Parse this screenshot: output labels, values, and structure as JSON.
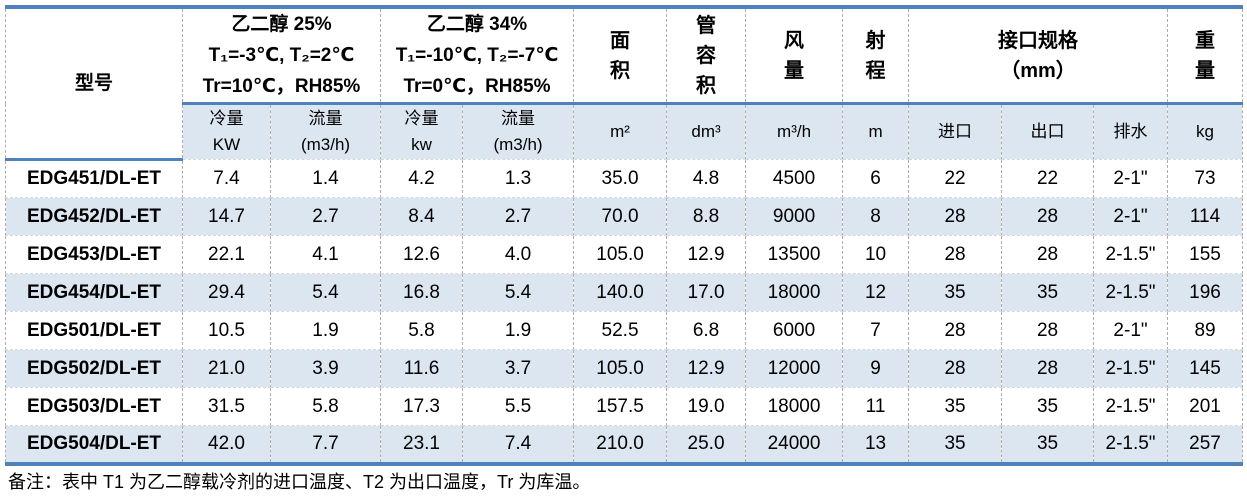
{
  "colors": {
    "accent_blue": "#4f81bd",
    "band_fill": "#dce6f1",
    "grid_line": "#aeaeae",
    "text": "#000000"
  },
  "header": {
    "model": "型号",
    "glycol25": "乙二醇 25%\nT₁=-3℃, T₂=2℃\nTr=10℃，RH85%",
    "glycol34": "乙二醇 34%\nT₁=-10℃, T₂=-7℃\nTr=0℃，RH85%",
    "area": "面\n积",
    "tube_volume": "管\n容\n积",
    "air_flow": "风\n量",
    "throw_range": "射\n程",
    "connection": "接口规格\n（mm）",
    "weight": "重\n量"
  },
  "units": [
    "冷量\nKW",
    "流量\n(m3/h)",
    "冷量\nkw",
    "流量\n(m3/h)",
    "m²",
    "dm³",
    "m³/h",
    "m",
    "进口",
    "出口",
    "排水",
    "kg"
  ],
  "rows": [
    [
      "EDG451/DL-ET",
      "7.4",
      "1.4",
      "4.2",
      "1.3",
      "35.0",
      "4.8",
      "4500",
      "6",
      "22",
      "22",
      "2-1\"",
      "73"
    ],
    [
      "EDG452/DL-ET",
      "14.7",
      "2.7",
      "8.4",
      "2.7",
      "70.0",
      "8.8",
      "9000",
      "8",
      "28",
      "28",
      "2-1\"",
      "114"
    ],
    [
      "EDG453/DL-ET",
      "22.1",
      "4.1",
      "12.6",
      "4.0",
      "105.0",
      "12.9",
      "13500",
      "10",
      "28",
      "28",
      "2-1.5\"",
      "155"
    ],
    [
      "EDG454/DL-ET",
      "29.4",
      "5.4",
      "16.8",
      "5.4",
      "140.0",
      "17.0",
      "18000",
      "12",
      "35",
      "35",
      "2-1.5\"",
      "196"
    ],
    [
      "EDG501/DL-ET",
      "10.5",
      "1.9",
      "5.8",
      "1.9",
      "52.5",
      "6.8",
      "6000",
      "7",
      "28",
      "28",
      "2-1\"",
      "89"
    ],
    [
      "EDG502/DL-ET",
      "21.0",
      "3.9",
      "11.6",
      "3.7",
      "105.0",
      "12.9",
      "12000",
      "9",
      "28",
      "28",
      "2-1.5\"",
      "145"
    ],
    [
      "EDG503/DL-ET",
      "31.5",
      "5.8",
      "17.3",
      "5.5",
      "157.5",
      "19.0",
      "18000",
      "11",
      "35",
      "35",
      "2-1.5\"",
      "201"
    ],
    [
      "EDG504/DL-ET",
      "42.0",
      "7.7",
      "23.1",
      "7.4",
      "210.0",
      "25.0",
      "24000",
      "13",
      "35",
      "35",
      "2-1.5\"",
      "257"
    ]
  ],
  "note": "备注：表中 T1 为乙二醇载冷剂的进口温度、T2 为出口温度，Tr 为库温。"
}
